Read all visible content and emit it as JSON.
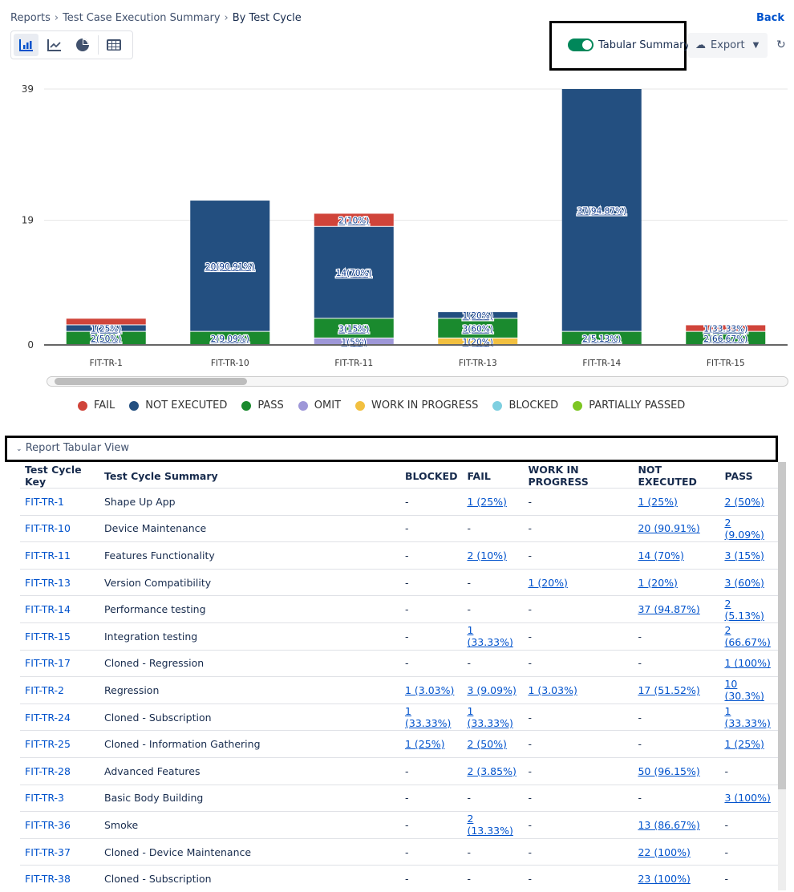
{
  "breadcrumb": [
    "Reports",
    "Test Case Execution Summary",
    "By Test Cycle"
  ],
  "back_label": "Back",
  "chart_types": [
    "bar-chart-icon",
    "line-chart-icon",
    "pie-chart-icon",
    "table-icon"
  ],
  "toggle": {
    "label": "Tabular Summary",
    "on": true
  },
  "export_label": "Export",
  "colors": {
    "FAIL": "#d0443a",
    "NOT EXECUTED": "#234f80",
    "PASS": "#1a8a2e",
    "OMIT": "#9e97d8",
    "WORK IN PROGRESS": "#f2c040",
    "BLOCKED": "#7ecfe0",
    "PARTIALLY PASSED": "#7dc623"
  },
  "chart_data": {
    "type": "bar",
    "stacked": true,
    "categories": [
      "FIT-TR-1",
      "FIT-TR-10",
      "FIT-TR-11",
      "FIT-TR-13",
      "FIT-TR-14",
      "FIT-TR-15"
    ],
    "yticks": [
      0,
      19,
      39
    ],
    "ylim": [
      0,
      39
    ],
    "grid": true,
    "legend": "bottom",
    "series": [
      {
        "name": "OMIT",
        "values": [
          0,
          0,
          1,
          0,
          0,
          0
        ],
        "labels": [
          null,
          null,
          "1(5%)",
          null,
          null,
          null
        ]
      },
      {
        "name": "WORK IN PROGRESS",
        "values": [
          0,
          0,
          0,
          1,
          0,
          0
        ],
        "labels": [
          null,
          null,
          null,
          "1(20%)",
          null,
          null
        ]
      },
      {
        "name": "PASS",
        "values": [
          2,
          2,
          3,
          3,
          2,
          2
        ],
        "labels": [
          "2(50%)",
          "2(9.09%)",
          "3(15%)",
          "3(60%)",
          "2(5.13%)",
          "2(66.67%)"
        ]
      },
      {
        "name": "NOT EXECUTED",
        "values": [
          1,
          20,
          14,
          1,
          37,
          0
        ],
        "labels": [
          "1(25%)",
          "20(90.91%)",
          "14(70%)",
          "1(20%)",
          "37(94.87%)",
          null
        ]
      },
      {
        "name": "FAIL",
        "values": [
          1,
          0,
          2,
          0,
          0,
          1
        ],
        "labels": [
          null,
          null,
          "2(10%)",
          null,
          null,
          "1(33.33%)"
        ]
      },
      {
        "name": "BLOCKED",
        "values": [
          0,
          0,
          0,
          0,
          0,
          0
        ],
        "labels": []
      },
      {
        "name": "PARTIALLY PASSED",
        "values": [
          0,
          0,
          0,
          0,
          0,
          0
        ],
        "labels": []
      }
    ],
    "legend_items": [
      "FAIL",
      "NOT EXECUTED",
      "PASS",
      "OMIT",
      "WORK IN PROGRESS",
      "BLOCKED",
      "PARTIALLY PASSED"
    ]
  },
  "section_title": "Report Tabular View",
  "table": {
    "headers": [
      "Test Cycle Key",
      "Test Cycle Summary",
      "BLOCKED",
      "FAIL",
      "WORK IN PROGRESS",
      "NOT EXECUTED",
      "PASS"
    ],
    "rows": [
      [
        "FIT-TR-1",
        "Shape Up App",
        "-",
        "1 (25%)",
        "-",
        "1 (25%)",
        "2 (50%)"
      ],
      [
        "FIT-TR-10",
        "Device Maintenance",
        "-",
        "-",
        "-",
        "20 (90.91%)",
        "2 (9.09%)"
      ],
      [
        "FIT-TR-11",
        "Features Functionality",
        "-",
        "2 (10%)",
        "-",
        "14 (70%)",
        "3 (15%)"
      ],
      [
        "FIT-TR-13",
        "Version Compatibility",
        "-",
        "-",
        "1 (20%)",
        "1 (20%)",
        "3 (60%)"
      ],
      [
        "FIT-TR-14",
        "Performance testing",
        "-",
        "-",
        "-",
        "37 (94.87%)",
        "2 (5.13%)"
      ],
      [
        "FIT-TR-15",
        "Integration testing",
        "-",
        "1 (33.33%)",
        "-",
        "-",
        "2 (66.67%)"
      ],
      [
        "FIT-TR-17",
        "Cloned - Regression",
        "-",
        "-",
        "-",
        "-",
        "1 (100%)"
      ],
      [
        "FIT-TR-2",
        "Regression",
        "1 (3.03%)",
        "3 (9.09%)",
        "1 (3.03%)",
        "17 (51.52%)",
        "10 (30.3%)"
      ],
      [
        "FIT-TR-24",
        "Cloned - Subscription",
        "1 (33.33%)",
        "1 (33.33%)",
        "-",
        "-",
        "1 (33.33%)"
      ],
      [
        "FIT-TR-25",
        "Cloned - Information Gathering",
        "1 (25%)",
        "2 (50%)",
        "-",
        "-",
        "1 (25%)"
      ],
      [
        "FIT-TR-28",
        "Advanced Features",
        "-",
        "2 (3.85%)",
        "-",
        "50 (96.15%)",
        "-"
      ],
      [
        "FIT-TR-3",
        "Basic Body Building",
        "-",
        "-",
        "-",
        "-",
        "3 (100%)"
      ],
      [
        "FIT-TR-36",
        "Smoke",
        "-",
        "2 (13.33%)",
        "-",
        "13 (86.67%)",
        "-"
      ],
      [
        "FIT-TR-37",
        "Cloned - Device Maintenance",
        "-",
        "-",
        "-",
        "22 (100%)",
        "-"
      ],
      [
        "FIT-TR-38",
        "Cloned - Subscription",
        "-",
        "-",
        "-",
        "23 (100%)",
        "-"
      ]
    ]
  }
}
